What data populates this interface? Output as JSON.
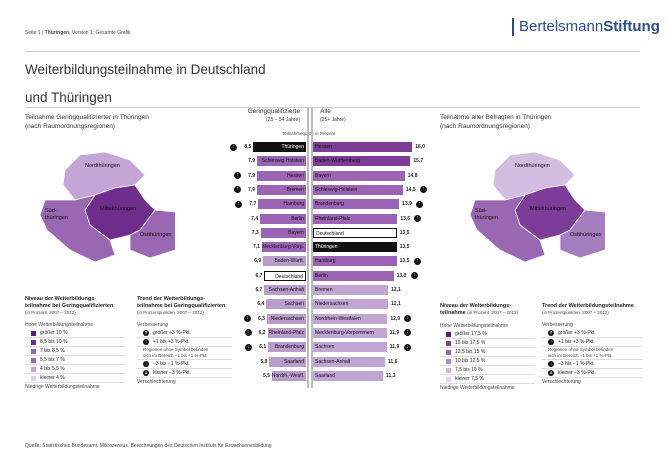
{
  "header": {
    "page": "Seite 1",
    "state": "Thüringen",
    "version": "Version 1: Gesamte Grafik"
  },
  "logo": {
    "part1": "Bertelsmann",
    "part2": "Stiftung"
  },
  "title": {
    "line1": "Weiterbildungsteilnahme in Deutschland",
    "line2": "und Thüringen"
  },
  "left_map": {
    "heading1": "Teilnahme Geringqualifizierter in Thüringen",
    "heading2": "(nach Raumordnungsregionen)",
    "regions": [
      {
        "name": "Nordthüringen",
        "color": "#c4a6d6"
      },
      {
        "name": "Mittelthüringen",
        "color": "#6e2d8a"
      },
      {
        "name": "Süd-",
        "name2": "thüringen",
        "color": "#9a67b3"
      },
      {
        "name": "Ostthüringen",
        "color": "#9a67b3"
      }
    ]
  },
  "right_map": {
    "heading1": "Teilnahme aller Befragten in Thüringen",
    "heading2": "(nach Raumordnungsregionen)",
    "regions": [
      {
        "name": "Nordthüringen",
        "color": "#d3bde0"
      },
      {
        "name": "Mittelthüringen",
        "color": "#7c3c98"
      },
      {
        "name": "Süd-",
        "name2": "thüringen",
        "color": "#9a67b3"
      },
      {
        "name": "Ostthüringen",
        "color": "#a47ebd"
      }
    ]
  },
  "center": {
    "left_head": "Geringqualifizierte",
    "left_sub": "(25 – 54 Jahre)",
    "right_head": "Alle",
    "right_sub": "(25+ Jahre)",
    "axis_label": "Teilnahmequote in Prozent"
  },
  "chart_data": [
    {
      "type": "bar",
      "orientation": "horizontal",
      "series": "Geringqualifizierte",
      "categories": [
        "Thüringen",
        "Schleswig-Holstein",
        "Hessen",
        "Bremen",
        "Hamburg",
        "Berlin",
        "Bayern",
        "Mecklenburg-Vorp.",
        "Baden-Württ.",
        "Deutschland",
        "Sachsen-Anhalt",
        "Sachsen",
        "Niedersachsen",
        "Rheinland-Pfalz",
        "Brandenburg",
        "Saarland",
        "Nordrh.-Westf."
      ],
      "labels": [
        "8,5",
        "7,9",
        "7,9",
        "7,9",
        "7,7",
        "7,4",
        "7,3",
        "7,1",
        "6,9",
        "6,7",
        "6,7",
        "6,4",
        "6,3",
        "6,2",
        "6,1",
        "5,9",
        "5,5"
      ],
      "values": [
        8.5,
        7.9,
        7.9,
        7.9,
        7.7,
        7.4,
        7.3,
        7.1,
        6.9,
        6.7,
        6.7,
        6.4,
        6.3,
        6.2,
        6.1,
        5.9,
        5.5
      ],
      "colors": [
        "#111111",
        "#9b63b4",
        "#9b63b4",
        "#9b63b4",
        "#9b63b4",
        "#9b63b4",
        "#9b63b4",
        "#9b63b4",
        "#b99bcc",
        "#ffffff",
        "#b99bcc",
        "#b99bcc",
        "#b99bcc",
        "#b99bcc",
        "#b99bcc",
        "#b99bcc",
        "#b99bcc"
      ],
      "trend": [
        "up",
        "",
        "up",
        "up",
        "up",
        "",
        "",
        "",
        "",
        "",
        "",
        "",
        "down",
        "down",
        "down",
        "",
        ""
      ]
    },
    {
      "type": "bar",
      "orientation": "horizontal",
      "series": "Alle",
      "categories": [
        "Hessen",
        "Baden-Württemberg",
        "Bayern",
        "Schleswig-Holstein",
        "Brandenburg",
        "Rheinland-Pfalz",
        "Deutschland",
        "Thüringen",
        "Hamburg",
        "Berlin",
        "Bremen",
        "Niedersachsen",
        "Nordrhein-Westfalen",
        "Mecklenburg-Vorpommern",
        "Sachsen",
        "Sachsen-Anhalt",
        "Saarland"
      ],
      "labels": [
        "16,0",
        "15,7",
        "14,8",
        "14,5",
        "13,9",
        "13,6",
        "13,5",
        "13,5",
        "13,5",
        "13,0",
        "12,1",
        "12,1",
        "12,0",
        "11,9",
        "11,9",
        "11,6",
        "11,3"
      ],
      "values": [
        16.0,
        15.7,
        14.8,
        14.5,
        13.9,
        13.6,
        13.5,
        13.5,
        13.5,
        13.0,
        12.1,
        12.1,
        12.0,
        11.9,
        11.9,
        11.6,
        11.3
      ],
      "colors": [
        "#7d3d96",
        "#7d3d96",
        "#9b63b4",
        "#9b63b4",
        "#9b63b4",
        "#9b63b4",
        "#ffffff",
        "#111111",
        "#9b63b4",
        "#9b63b4",
        "#c1a5d3",
        "#c1a5d3",
        "#c1a5d3",
        "#c1a5d3",
        "#c1a5d3",
        "#c1a5d3",
        "#c1a5d3"
      ],
      "trend": [
        "",
        "",
        "",
        "up",
        "up",
        "up",
        "",
        "",
        "up",
        "up",
        "",
        "",
        "down",
        "down",
        "down",
        "",
        ""
      ]
    }
  ],
  "left_legend": {
    "level_title1": "Niveau der Weiterbildungs-",
    "level_title2": "teilnahme bei Geringqualifizierten",
    "level_sub": "(in Prozent, 2007 – 2012)",
    "high": "Hohe Weiterbildungsteilnahme",
    "low": "Niedrige Weiterbildungsteilnahme",
    "items": [
      {
        "label": "größer 10 %",
        "color": "#5a1f73"
      },
      {
        "label": "8,5 bis 10 %",
        "color": "#6e2d8a"
      },
      {
        "label": "7 bis 8,5 %",
        "color": "#9b63b4"
      },
      {
        "label": "5,5 bis 7 %",
        "color": "#9a67b3"
      },
      {
        "label": "4 bis 5,5 %",
        "color": "#c4a6d6"
      },
      {
        "label": "kleiner 4 %",
        "color": "#e0d2ea"
      }
    ],
    "trend_title1": "Trend der Weiterbildungs-",
    "trend_title2": "teilnahme bei Geringqualifizierten",
    "trend_sub": "(in Prozentpunkten, 2007 – 2012)",
    "better": "Verbesserung",
    "worse": "Verschlechterung",
    "trend_items": [
      "größer +3 %-Pkt.",
      "+1 bis +3 %-Pkt.",
      "−3 bis −1 %-Pkt.",
      "kleiner −3 %-Pkt."
    ],
    "note1": "Regionen ohne Symbol befinden",
    "note2": "sich im Bereich −1 bis +1 %-Pkt."
  },
  "right_legend": {
    "level_title1": "Niveau der Weiterbildungs-",
    "level_title2": "teilnahme",
    "level_sub": "(in Prozent, 2007 – 2012)",
    "high": "Hohe Weiterbildungsteilnahme",
    "low": "Niedrige Weiterbildungsteilnahme",
    "items": [
      {
        "label": "größer 17,5 %",
        "color": "#5a1f73"
      },
      {
        "label": "15 bis 17,5 %",
        "color": "#7d3d96"
      },
      {
        "label": "12,5 bis 15 %",
        "color": "#9b63b4"
      },
      {
        "label": "10 bis 12,5 %",
        "color": "#b087c6"
      },
      {
        "label": "7,5 bis 10 %",
        "color": "#cdb5dc"
      },
      {
        "label": "kleiner 7,5 %",
        "color": "#e3d6ec"
      }
    ],
    "trend_title1": "Trend der Weiterbildungsteilnahme",
    "trend_sub": "(in Prozentpunkten, 2007 – 2012)",
    "better": "Verbesserung",
    "worse": "Verschlechterung",
    "trend_items": [
      "größer +3 %-Pkt.",
      "+1 bis +3 %-Pkt.",
      "−3 bis −1 %-Pkt.",
      "kleiner −3 %-Pkt."
    ],
    "note1": "Regionen ohne Symbol befinden",
    "note2": "sich im Bereich −1 bis +1 %-Pkt."
  },
  "footer": {
    "source": "Quelle: Statistisches Bundesamt, Mikrozensus. Berechnungen des Deutschen Instituts für Erwachsenenbildung"
  }
}
